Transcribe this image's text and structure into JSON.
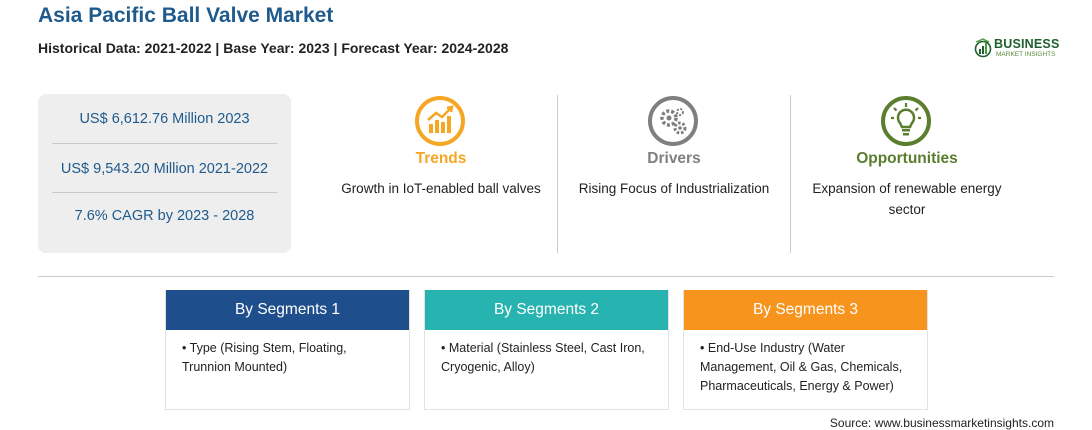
{
  "header": {
    "title": "Asia Pacific Ball Valve Market",
    "subtitle": "Historical Data: 2021-2022 | Base Year: 2023 | Forecast Year: 2024-2028"
  },
  "logo": {
    "name": "BUSINESS",
    "tagline": "MARKET INSIGHTS",
    "color": "#1e5f2e"
  },
  "stats": [
    "US$ 6,612.76 Million 2023",
    "US$ 9,543.20 Million 2021-2022",
    "7.6% CAGR by 2023 - 2028"
  ],
  "highlights": [
    {
      "heading": "Trends",
      "text": "Growth in IoT-enabled ball valves",
      "icon": "chart-growth-icon",
      "color": "#f5a623"
    },
    {
      "heading": "Drivers",
      "text": "Rising Focus of Industrialization",
      "icon": "gears-icon",
      "color": "#7f7f7f"
    },
    {
      "heading": "Opportunities",
      "text": "Expansion of renewable energy sector",
      "icon": "lightbulb-icon",
      "color": "#5a7d2e"
    }
  ],
  "segments": [
    {
      "title": "By Segments 1",
      "item": "Type (Rising Stem, Floating, Trunnion Mounted)",
      "color": "#1f4e8c"
    },
    {
      "title": "By Segments 2",
      "item": "Material (Stainless Steel, Cast Iron, Cryogenic, Alloy)",
      "color": "#27b3b0"
    },
    {
      "title": "By Segments 3",
      "item": "End-Use Industry (Water Management, Oil & Gas, Chemicals, Pharmaceuticals, Energy & Power)",
      "color": "#f7941d"
    }
  ],
  "source": "Source: www.businessmarketinsights.com"
}
